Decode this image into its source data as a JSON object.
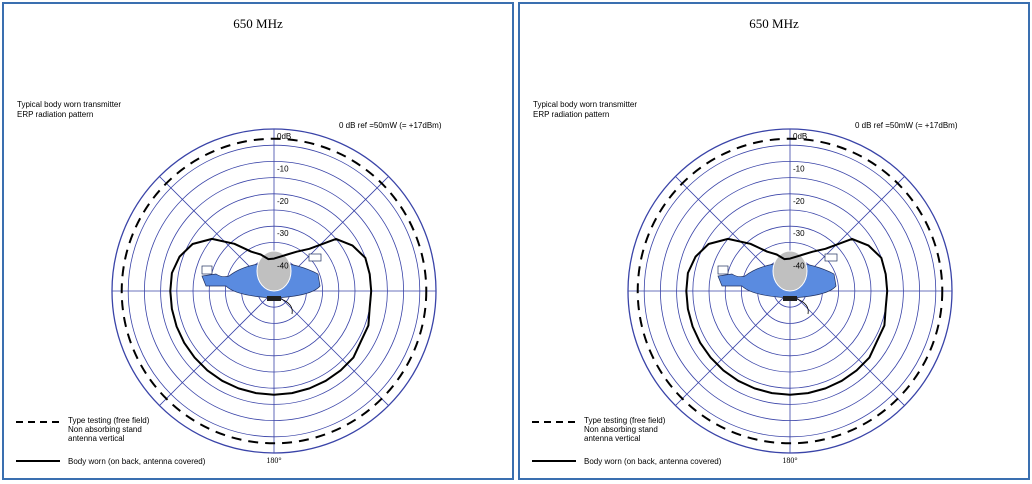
{
  "panels": [
    {
      "frequency_label": "650 MHz",
      "subtitle_line1": "Typical body worn transmitter",
      "subtitle_line2": "ERP radiation pattern",
      "reference_note": "0 dB ref =50mW (= +17dBm)",
      "angle_labels": {
        "top": "0°",
        "right": "90°",
        "bottom": "180°",
        "left": "270°"
      },
      "legend": {
        "dashed_line1": "Type testing (free field)",
        "dashed_line2": "Non absorbing stand",
        "dashed_line3": "antenna vertical",
        "solid_line1": "Body worn (on back, antenna covered)"
      }
    },
    {
      "frequency_label": "650 MHz",
      "subtitle_line1": "Typical body worn transmitter",
      "subtitle_line2": "ERP radiation pattern",
      "reference_note": "0 dB ref =50mW (= +17dBm)",
      "angle_labels": {
        "top": "0°",
        "right": "90°",
        "bottom": "180°",
        "left": "270°"
      },
      "legend": {
        "dashed_line1": "Type testing (free field)",
        "dashed_line2": "Non absorbing stand",
        "dashed_line3": "antenna vertical",
        "solid_line1": "Body worn (on back, antenna covered)"
      }
    }
  ],
  "colors": {
    "border": "#3a6fb0",
    "grid": "#3a44a8",
    "body": "#5a8be0",
    "head": "#c0c0c0",
    "trace": "#000000"
  },
  "chart_data": [
    {
      "type": "polar",
      "title": "650 MHz",
      "radial_unit": "dB",
      "radial_tick_labels": [
        "0dB",
        "-10",
        "-20",
        "-30",
        "-40"
      ],
      "radial_range": [
        -50,
        0
      ],
      "angle_tick_labels": [
        "0°",
        "90°",
        "180°",
        "270°"
      ],
      "series": [
        {
          "name": "Type testing (free field) Non absorbing stand antenna vertical",
          "style": "dashed",
          "points": [
            [
              0,
              -3
            ],
            [
              90,
              -3
            ],
            [
              180,
              -3
            ],
            [
              270,
              -3
            ]
          ]
        },
        {
          "name": "Body worn (on back, antenna covered)",
          "style": "solid",
          "points": [
            [
              0,
              -40
            ],
            [
              20,
              -38
            ],
            [
              30,
              -36
            ],
            [
              40,
              -33
            ],
            [
              50,
              -25
            ],
            [
              60,
              -22
            ],
            [
              70,
              -20
            ],
            [
              80,
              -20
            ],
            [
              90,
              -20
            ],
            [
              100,
              -20
            ],
            [
              110,
              -19
            ],
            [
              120,
              -19
            ],
            [
              130,
              -18
            ],
            [
              140,
              -18
            ],
            [
              150,
              -18
            ],
            [
              160,
              -18
            ],
            [
              170,
              -18
            ],
            [
              180,
              -18
            ],
            [
              190,
              -18
            ],
            [
              200,
              -18
            ],
            [
              210,
              -18
            ],
            [
              220,
              -18
            ],
            [
              230,
              -18
            ],
            [
              240,
              -18
            ],
            [
              250,
              -18
            ],
            [
              260,
              -18
            ],
            [
              270,
              -18
            ],
            [
              280,
              -18
            ],
            [
              290,
              -19
            ],
            [
              300,
              -21
            ],
            [
              310,
              -25
            ],
            [
              320,
              -31
            ],
            [
              330,
              -36
            ],
            [
              340,
              -38
            ],
            [
              350,
              -40
            ]
          ]
        }
      ]
    },
    {
      "type": "polar",
      "title": "650 MHz",
      "radial_unit": "dB",
      "radial_tick_labels": [
        "0dB",
        "-10",
        "-20",
        "-30",
        "-40"
      ],
      "radial_range": [
        -50,
        0
      ],
      "angle_tick_labels": [
        "0°",
        "90°",
        "180°",
        "270°"
      ],
      "series": [
        {
          "name": "Type testing (free field) Non absorbing stand antenna vertical",
          "style": "dashed",
          "points": [
            [
              0,
              -3
            ],
            [
              90,
              -3
            ],
            [
              180,
              -3
            ],
            [
              270,
              -3
            ]
          ]
        },
        {
          "name": "Body worn (on back, antenna covered)",
          "style": "solid",
          "points": [
            [
              0,
              -40
            ],
            [
              20,
              -38
            ],
            [
              30,
              -36
            ],
            [
              40,
              -33
            ],
            [
              50,
              -25
            ],
            [
              60,
              -22
            ],
            [
              70,
              -20
            ],
            [
              80,
              -20
            ],
            [
              90,
              -20
            ],
            [
              100,
              -20
            ],
            [
              110,
              -19
            ],
            [
              120,
              -19
            ],
            [
              130,
              -18
            ],
            [
              140,
              -18
            ],
            [
              150,
              -18
            ],
            [
              160,
              -18
            ],
            [
              170,
              -18
            ],
            [
              180,
              -18
            ],
            [
              190,
              -18
            ],
            [
              200,
              -18
            ],
            [
              210,
              -18
            ],
            [
              220,
              -18
            ],
            [
              230,
              -18
            ],
            [
              240,
              -18
            ],
            [
              250,
              -18
            ],
            [
              260,
              -18
            ],
            [
              270,
              -18
            ],
            [
              280,
              -18
            ],
            [
              290,
              -19
            ],
            [
              300,
              -21
            ],
            [
              310,
              -25
            ],
            [
              320,
              -31
            ],
            [
              330,
              -36
            ],
            [
              340,
              -38
            ],
            [
              350,
              -40
            ]
          ]
        }
      ]
    }
  ]
}
